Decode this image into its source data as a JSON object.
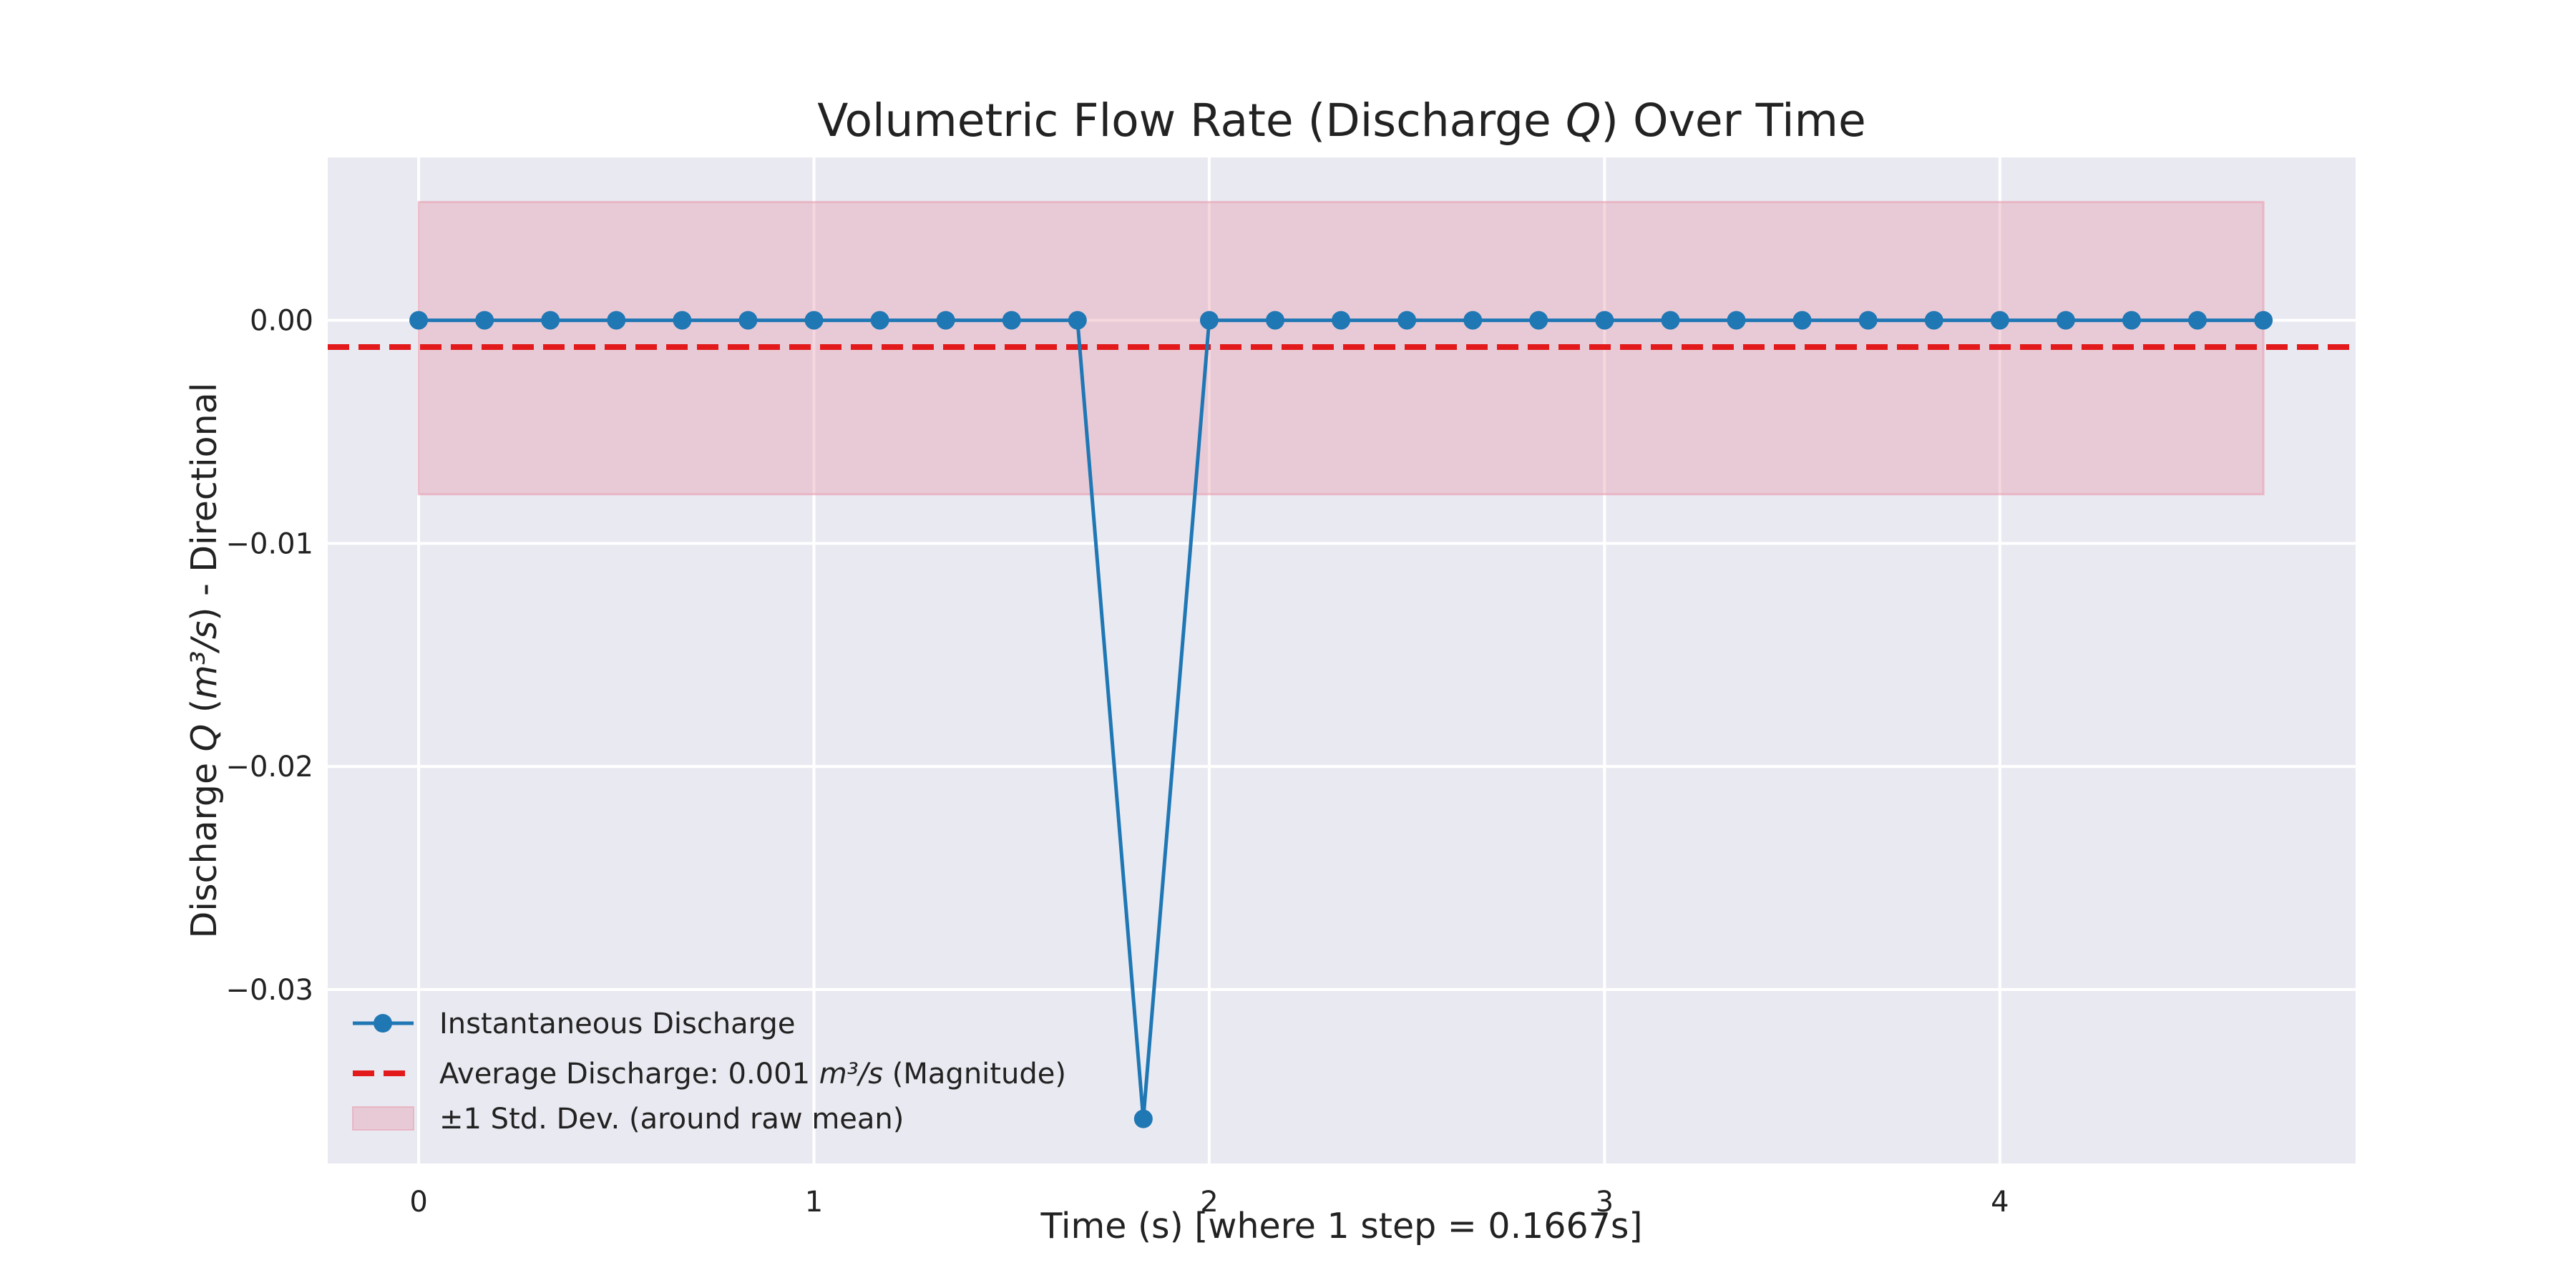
{
  "chart_data": {
    "type": "line",
    "title": "Volumetric Flow Rate (Discharge Q) Over Time",
    "xlabel": "Time (s) [where 1 step = 0.1667s]",
    "ylabel": "Discharge Q (m³/s) - Directional",
    "xlim": [
      -0.23,
      4.9
    ],
    "ylim": [
      -0.0378,
      0.0073
    ],
    "xticks": [
      0,
      1,
      2,
      3,
      4
    ],
    "xtick_labels": [
      "0",
      "1",
      "2",
      "3",
      "4"
    ],
    "yticks": [
      0.0,
      -0.01,
      -0.02,
      -0.03
    ],
    "ytick_labels": [
      "0.00",
      "−0.01",
      "−0.02",
      "−0.03"
    ],
    "grid": true,
    "legend_position": "lower-left",
    "series": [
      {
        "name": "Instantaneous Discharge",
        "kind": "line-markers",
        "color": "#1f77b4",
        "x": [
          0,
          0.1667,
          0.3333,
          0.5,
          0.6667,
          0.8333,
          1.0,
          1.1667,
          1.3333,
          1.5,
          1.6667,
          1.8333,
          2.0,
          2.1667,
          2.3333,
          2.5,
          2.6667,
          2.8333,
          3.0,
          3.1667,
          3.3333,
          3.5,
          3.6667,
          3.8333,
          4.0,
          4.1667,
          4.3333,
          4.5,
          4.6667
        ],
        "y": [
          0,
          0,
          0,
          0,
          0,
          0,
          0,
          0,
          0,
          0,
          0,
          -0.0358,
          0,
          0,
          0,
          0,
          0,
          0,
          0,
          0,
          0,
          0,
          0,
          0,
          0,
          0,
          0,
          0,
          0
        ]
      },
      {
        "name": "Average Discharge: 0.001 m³/s (Magnitude)",
        "kind": "hline-dashed",
        "color": "#e31a1c",
        "y": -0.0012
      },
      {
        "name": "±1 Std. Dev. (around raw mean)",
        "kind": "band",
        "color": "#e8a0b0",
        "x_range": [
          0,
          4.6667
        ],
        "y_range": [
          -0.0078,
          0.0053
        ]
      }
    ]
  },
  "colors": {
    "plot_background": "#e9e9f1",
    "grid": "#ffffff",
    "line": "#1f77b4",
    "mean_line": "#e31a1c",
    "band": "#e8a0b0"
  }
}
